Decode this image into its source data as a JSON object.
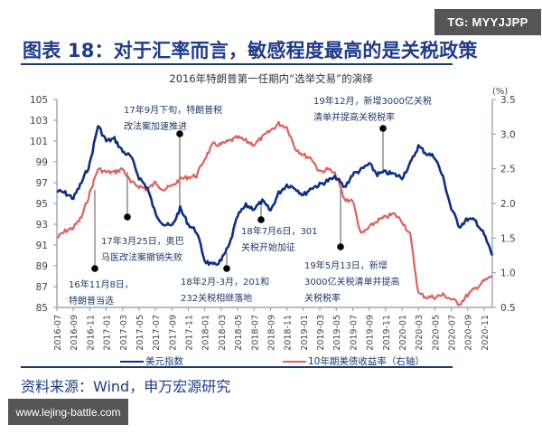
{
  "watermark_top": "TG: MYYJJPP",
  "watermark_bottom": "www.lejing-battle.com",
  "figure_title": "图表 18：对于汇率而言，敏感程度最高的是关税政策",
  "source": "资料来源：Wind，申万宏源研究",
  "colors": {
    "dxy": "#0d2f8a",
    "yield": "#e0605c",
    "title": "#1f3b8c",
    "axis": "#8a95ad"
  },
  "chart_data": {
    "type": "line",
    "title": "2016年特朗普第一任期内“选举交易”的演绎",
    "xlabel": "",
    "ylabel_left": "",
    "ylabel_right": "(%)",
    "ylim_left": [
      85,
      105
    ],
    "ylim_right": [
      0.5,
      3.5
    ],
    "yticks_left": [
      "105",
      "103",
      "101",
      "99",
      "97",
      "95",
      "93",
      "91",
      "89",
      "87",
      "85"
    ],
    "yticks_right": [
      "3.5",
      "3.0",
      "2.5",
      "2.0",
      "1.5",
      "1.0",
      "0.5"
    ],
    "xticks": [
      "2016-07",
      "2016-09",
      "2016-11",
      "2017-01",
      "2017-03",
      "2017-05",
      "2017-07",
      "2017-09",
      "2017-11",
      "2018-01",
      "2018-03",
      "2018-05",
      "2018-07",
      "2018-09",
      "2018-11",
      "2019-01",
      "2019-03",
      "2019-05",
      "2019-07",
      "2019-09",
      "2019-11",
      "2020-01",
      "2020-03",
      "2020-05",
      "2020-07",
      "2020-09",
      "2020-11"
    ],
    "grid": false,
    "legend_position": "bottom",
    "x": [
      "2016-07",
      "2016-08",
      "2016-09",
      "2016-10",
      "2016-11",
      "2016-12",
      "2017-01",
      "2017-02",
      "2017-03",
      "2017-04",
      "2017-05",
      "2017-06",
      "2017-07",
      "2017-08",
      "2017-09",
      "2017-10",
      "2017-11",
      "2017-12",
      "2018-01",
      "2018-02",
      "2018-03",
      "2018-04",
      "2018-05",
      "2018-06",
      "2018-07",
      "2018-08",
      "2018-09",
      "2018-10",
      "2018-11",
      "2018-12",
      "2019-01",
      "2019-02",
      "2019-03",
      "2019-04",
      "2019-05",
      "2019-06",
      "2019-07",
      "2019-08",
      "2019-09",
      "2019-10",
      "2019-11",
      "2019-12",
      "2020-01",
      "2020-02",
      "2020-03",
      "2020-04",
      "2020-05",
      "2020-06",
      "2020-07",
      "2020-08",
      "2020-09",
      "2020-10",
      "2020-11",
      "2020-12"
    ],
    "series": [
      {
        "name": "美元指数",
        "axis": "left",
        "values": [
          96.2,
          96.0,
          95.5,
          97.0,
          98.8,
          102.5,
          101.0,
          101.2,
          100.0,
          99.5,
          97.5,
          96.5,
          94.0,
          93.0,
          92.8,
          94.5,
          93.0,
          92.3,
          89.5,
          89.0,
          89.5,
          91.0,
          93.8,
          94.8,
          94.5,
          95.2,
          94.3,
          96.0,
          96.8,
          96.5,
          95.8,
          96.5,
          96.8,
          97.2,
          97.5,
          96.5,
          97.8,
          98.2,
          98.8,
          97.8,
          98.0,
          97.8,
          97.5,
          98.8,
          100.5,
          99.8,
          99.5,
          97.5,
          94.5,
          92.8,
          93.5,
          93.3,
          92.0,
          90.0
        ]
      },
      {
        "name": "10年期美债收益率（右轴）",
        "axis": "right",
        "values": [
          1.5,
          1.6,
          1.65,
          1.8,
          2.15,
          2.5,
          2.45,
          2.45,
          2.5,
          2.3,
          2.25,
          2.2,
          2.3,
          2.2,
          2.25,
          2.35,
          2.38,
          2.4,
          2.65,
          2.85,
          2.85,
          2.9,
          2.95,
          2.9,
          2.85,
          2.95,
          3.05,
          3.15,
          3.1,
          2.8,
          2.7,
          2.65,
          2.45,
          2.5,
          2.4,
          2.05,
          2.05,
          1.55,
          1.65,
          1.75,
          1.8,
          1.85,
          1.75,
          1.55,
          0.7,
          0.65,
          0.65,
          0.68,
          0.62,
          0.55,
          0.68,
          0.78,
          0.88,
          0.95
        ]
      }
    ],
    "annotations": [
      {
        "label": "16年11月8日，特朗普当选",
        "date": "2016-11-08"
      },
      {
        "label": "17年3月25日，奥巴马医改法案撤销失败",
        "date": "2017-03-25"
      },
      {
        "label": "17年9月下旬，特朗普税改法案加速推进",
        "date": "2017-09"
      },
      {
        "label": "18年2月-3月，201和232关税相继落地",
        "date": "2018-02~2018-03"
      },
      {
        "label": "18年7月6日，301关税开始加征",
        "date": "2018-07-06"
      },
      {
        "label": "19年5月13日，新增3000亿关税清单并提高关税税率",
        "date": "2019-05-13"
      },
      {
        "label": "19年12月，新增3000亿关税清单并提高关税税率",
        "date": "2019-12"
      }
    ]
  },
  "annotations_text": {
    "a1": [
      "16年11月8日，",
      "特朗普当选"
    ],
    "a2": [
      "17年3月25日，奥巴",
      "马医改法案撤销失败"
    ],
    "a3": [
      "17年9月下旬，特朗普税",
      "改法案加速推进"
    ],
    "a4": [
      "18年2月-3月，201和",
      "232关税相继落地"
    ],
    "a5": [
      "18年7月6日，301",
      "关税开始加征"
    ],
    "a6": [
      "19年5月13日，新增",
      "3000亿关税清单并提高",
      "关税税率"
    ],
    "a7": [
      "19年12月，新增3000亿关税",
      "清单并提高关税税率"
    ]
  },
  "legend": {
    "dxy": "美元指数",
    "yield": "10年期美债收益率（右轴）"
  }
}
